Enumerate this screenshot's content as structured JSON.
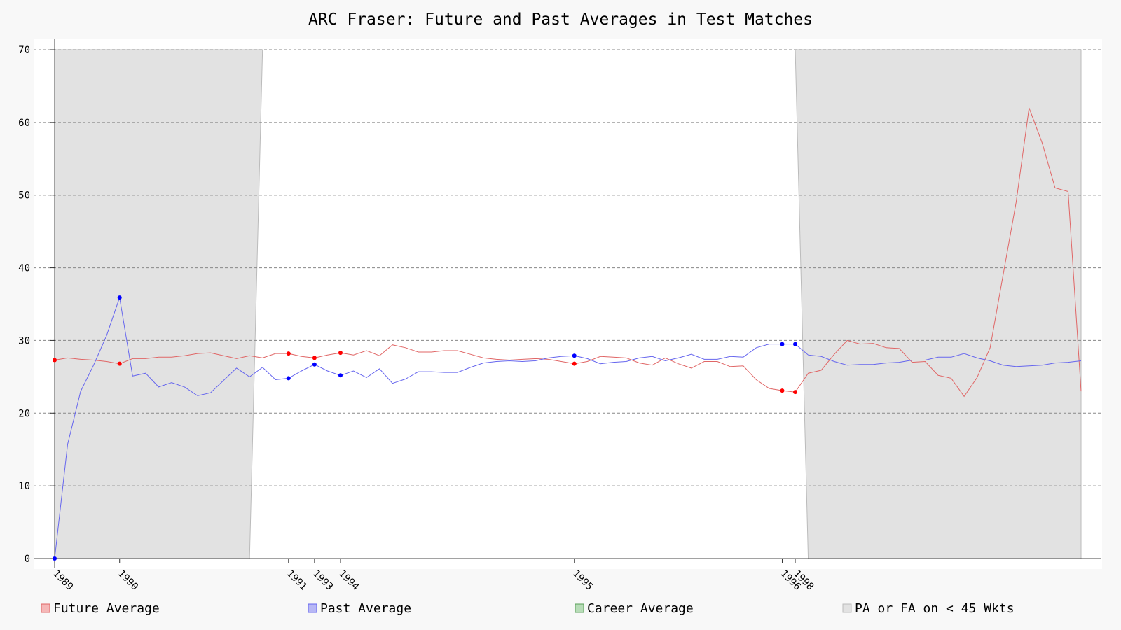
{
  "chart_data": {
    "type": "line",
    "title": "ARC Fraser: Future and Past Averages in Test Matches",
    "ylim": [
      0,
      70
    ],
    "yticks": [
      0,
      10,
      20,
      30,
      40,
      50,
      60,
      70
    ],
    "x_count": 80,
    "grid": true,
    "legend_position": "bottom",
    "career_average": 27.3,
    "x_tick_labels": [
      {
        "label": "1989",
        "index": 0
      },
      {
        "label": "1990",
        "index": 5
      },
      {
        "label": "1991",
        "index": 18
      },
      {
        "label": "1993",
        "index": 20
      },
      {
        "label": "1994",
        "index": 22
      },
      {
        "label": "1995",
        "index": 40
      },
      {
        "label": "1996",
        "index": 56
      },
      {
        "label": "1998",
        "index": 57
      }
    ],
    "shaded_regions": [
      {
        "x_top": [
          0,
          16
        ],
        "x_bottom": [
          0,
          15
        ]
      },
      {
        "x_top": [
          57,
          79
        ],
        "x_bottom": [
          58,
          79
        ]
      }
    ],
    "series": [
      {
        "name": "Future Average",
        "color": "#e06666",
        "marker_color": "#ff0000",
        "values": [
          27.3,
          27.6,
          27.4,
          27.3,
          27.1,
          26.8,
          27.5,
          27.5,
          27.7,
          27.7,
          27.9,
          28.2,
          28.3,
          27.9,
          27.5,
          27.9,
          27.6,
          28.2,
          28.2,
          27.8,
          27.6,
          28.0,
          28.3,
          28.0,
          28.6,
          27.9,
          29.4,
          29.0,
          28.4,
          28.4,
          28.6,
          28.6,
          28.1,
          27.6,
          27.4,
          27.3,
          27.4,
          27.5,
          27.4,
          27.1,
          26.8,
          27.1,
          27.8,
          27.7,
          27.6,
          26.9,
          26.6,
          27.6,
          26.8,
          26.2,
          27.1,
          27.1,
          26.4,
          26.5,
          24.6,
          23.4,
          23.1,
          22.9,
          25.5,
          25.9,
          28.1,
          30.0,
          29.5,
          29.6,
          29.0,
          28.9,
          27.0,
          27.1,
          25.2,
          24.8,
          22.3,
          24.9,
          29.0,
          39.0,
          49.0,
          62.0,
          57.2,
          51.0,
          50.5,
          23.0
        ],
        "markers": [
          0,
          5,
          18,
          20,
          22,
          40,
          56,
          57
        ]
      },
      {
        "name": "Past Average",
        "color": "#6666ee",
        "marker_color": "#0000ff",
        "values": [
          0,
          15.7,
          23.0,
          26.6,
          30.7,
          35.9,
          25.1,
          25.5,
          23.6,
          24.2,
          23.6,
          22.4,
          22.8,
          24.5,
          26.2,
          25.0,
          26.3,
          24.6,
          24.8,
          25.8,
          26.7,
          25.8,
          25.2,
          25.8,
          24.9,
          26.1,
          24.1,
          24.7,
          25.7,
          25.7,
          25.6,
          25.6,
          26.3,
          26.9,
          27.1,
          27.2,
          27.1,
          27.2,
          27.6,
          27.8,
          27.9,
          27.5,
          26.8,
          27.0,
          27.1,
          27.6,
          27.8,
          27.2,
          27.6,
          28.1,
          27.4,
          27.4,
          27.8,
          27.7,
          29.0,
          29.5,
          29.5,
          29.5,
          28.0,
          27.8,
          27.1,
          26.6,
          26.7,
          26.7,
          26.9,
          27.0,
          27.3,
          27.3,
          27.7,
          27.7,
          28.2,
          27.6,
          27.2,
          26.6,
          26.4,
          26.5,
          26.6,
          26.9,
          27.0,
          27.2
        ],
        "markers": [
          0,
          5,
          18,
          20,
          22,
          40,
          56,
          57
        ]
      },
      {
        "name": "Career Average",
        "color": "#5aa05a"
      }
    ],
    "legend": [
      {
        "label": "Future Average",
        "swatch_fill": "#f5b7b7",
        "swatch_stroke": "#e06666"
      },
      {
        "label": "Past Average",
        "swatch_fill": "#b7b7f5",
        "swatch_stroke": "#6666ee"
      },
      {
        "label": "Career Average",
        "swatch_fill": "#b7dcb7",
        "swatch_stroke": "#5aa05a"
      },
      {
        "label": "PA or FA on < 45 Wkts",
        "swatch_fill": "#e2e2e2",
        "swatch_stroke": "#bbbbbb"
      }
    ]
  }
}
